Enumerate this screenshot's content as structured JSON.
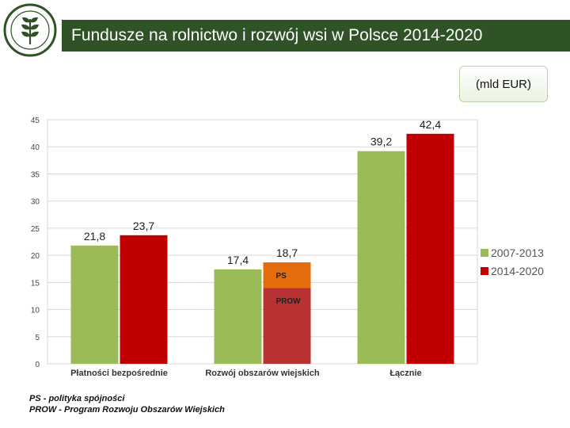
{
  "header": {
    "title": "Fundusze na rolnictwo i rozwój wsi w Polsce 2014-2020",
    "logo_icon": "ministry-seal-icon"
  },
  "unit_label": "(mld EUR)",
  "footnotes": {
    "line1": "PS - polityka spójności",
    "line2": "PROW - Program Rozwoju Obszarów Wiejskich"
  },
  "colors": {
    "title_bar": "#2f5227",
    "series_2007": "#9bbb59",
    "series_2014": "#c00000",
    "segment_ps": "#e46c0a",
    "segment_prow": "#b83232"
  },
  "chart_data": {
    "type": "bar",
    "categories": [
      "Płatności bezpośrednie",
      "Rozwój obszarów wiejskich",
      "Łącznie"
    ],
    "ylim": [
      0,
      45
    ],
    "yticks": [
      0,
      5,
      10,
      15,
      20,
      25,
      30,
      35,
      40,
      45
    ],
    "grid": true,
    "legend_position": "right",
    "series": [
      {
        "name": "2007-2013",
        "values": [
          21.8,
          17.4,
          39.2
        ],
        "labels": [
          "21,8",
          "17,4",
          "39,2"
        ]
      },
      {
        "name": "2014-2020",
        "values": [
          23.7,
          18.7,
          42.4
        ],
        "labels": [
          "23,7",
          "18,7",
          "42,4"
        ]
      }
    ],
    "stacked_segments": {
      "category_index": 1,
      "series_index": 1,
      "segments": [
        {
          "name": "PROW",
          "value": 14.0
        },
        {
          "name": "PS",
          "value": 4.7
        }
      ]
    }
  }
}
